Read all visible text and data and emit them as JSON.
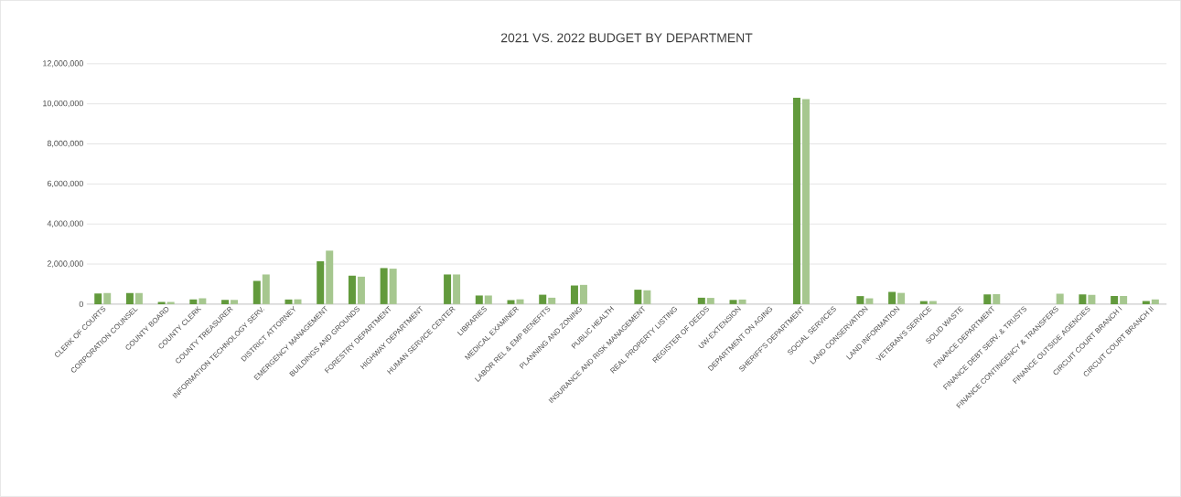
{
  "chart_data": {
    "type": "bar",
    "title": "2021 VS. 2022 BUDGET BY DEPARTMENT",
    "categories": [
      "CLERK OF COURTS",
      "CORPORATION COUNSEL",
      "COUNTY BOARD",
      "COUNTY CLERK",
      "COUNTY TREASURER",
      "INFORMATION TECHNOLOGY SERV.",
      "DISTRICT ATTORNEY",
      "EMERGENCY MANAGEMENT",
      "BUILDINGS AND GROUNDS",
      "FORESTRY DEPARTMENT",
      "HIGHWAY DEPARTMENT",
      "HUMAN SERVICE CENTER",
      "LIBRARIES",
      "MEDICAL EXAMINER",
      "LABOR REL & EMP BENEFITS",
      "PLANNING AND ZONING",
      "PUBLIC HEALTH",
      "INSURANCE AND RISK MANAGEMENT",
      "REAL PROPERTY LISTING",
      "REGISTER OF DEEDS",
      "UW-EXTENSION",
      "DEPARTMENT ON AGING",
      "SHERIFF'S DEPARTMENT",
      "SOCIAL SERVICES",
      "LAND CONSERVATION",
      "LAND INFORMATION",
      "VETERAN'S SERVICE",
      "SOLID WASTE",
      "FINANCE DEPARTMENT",
      "FINANCE DEBT SERV. & TRUSTS",
      "FINANCE CONTINGENCY & TRANSFERS",
      "FINANCE OUTSIDE AGENCIES",
      "CIRCUIT COURT BRANCH I",
      "CIRCUIT COURT BRANCH II"
    ],
    "series": [
      {
        "color": "#629a3c",
        "values": [
          530000,
          550000,
          110000,
          230000,
          210000,
          1160000,
          230000,
          2140000,
          1420000,
          1800000,
          null,
          1480000,
          430000,
          200000,
          470000,
          930000,
          null,
          720000,
          null,
          320000,
          210000,
          null,
          10300000,
          null,
          400000,
          610000,
          150000,
          null,
          490000,
          null,
          null,
          490000,
          400000,
          150000
        ]
      },
      {
        "color": "#a6c78f",
        "values": [
          550000,
          550000,
          110000,
          290000,
          210000,
          1480000,
          240000,
          2670000,
          1370000,
          1770000,
          null,
          1480000,
          430000,
          240000,
          320000,
          960000,
          null,
          690000,
          null,
          310000,
          230000,
          null,
          10230000,
          null,
          290000,
          560000,
          150000,
          null,
          500000,
          null,
          520000,
          460000,
          400000,
          230000
        ]
      }
    ],
    "ylim": [
      0,
      12000000
    ],
    "yticks": [
      {
        "value": 0,
        "label": "0"
      },
      {
        "value": 2000000,
        "label": "2,000,000"
      },
      {
        "value": 4000000,
        "label": "4,000,000"
      },
      {
        "value": 6000000,
        "label": "6,000,000"
      },
      {
        "value": 8000000,
        "label": "8,000,000"
      },
      {
        "value": 10000000,
        "label": "10,000,000"
      },
      {
        "value": 12000000,
        "label": "12,000,000"
      }
    ],
    "grid": "y"
  }
}
